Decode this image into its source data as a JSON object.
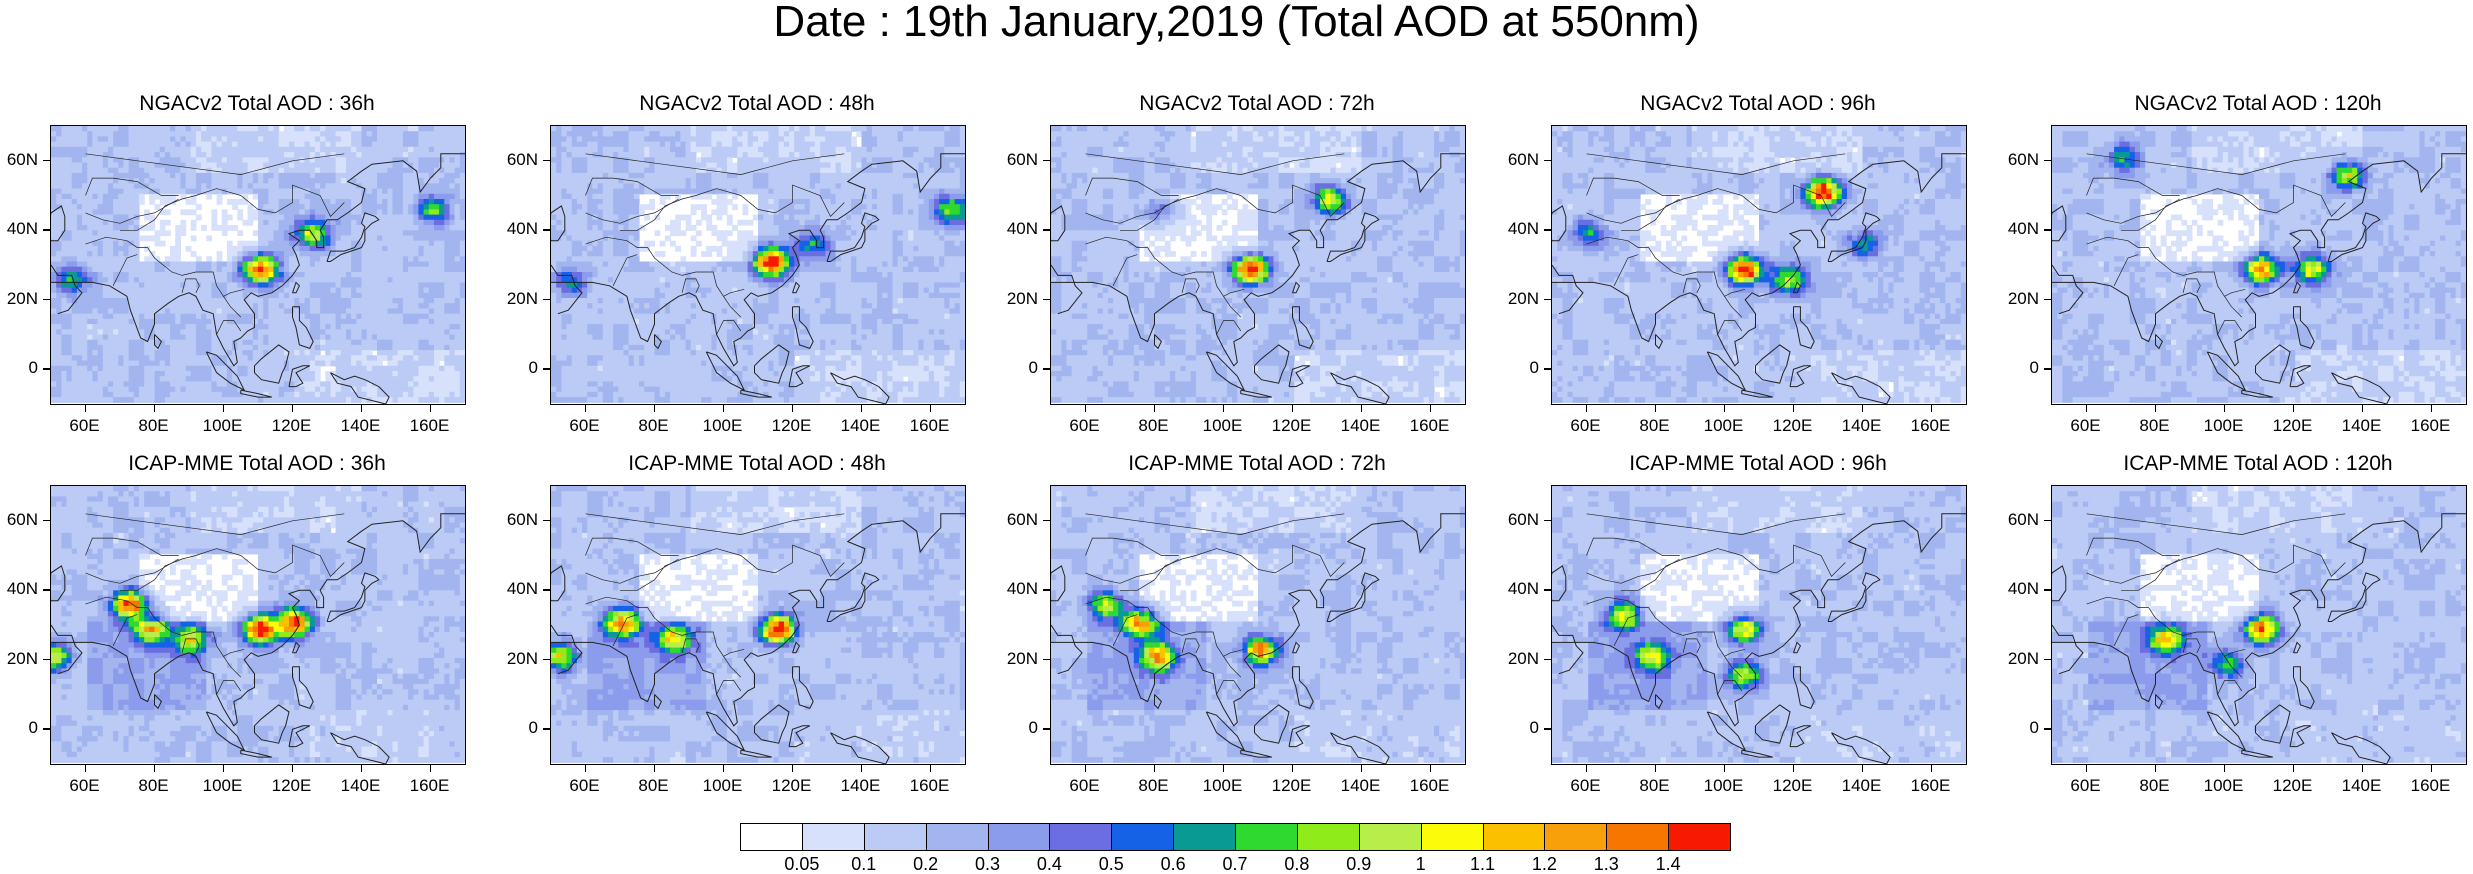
{
  "title": "Date : 19th January,2019 (Total AOD at 550nm)",
  "lat_labels": [
    "60N",
    "40N",
    "20N",
    "0"
  ],
  "lon_labels": [
    "60E",
    "80E",
    "100E",
    "120E",
    "140E",
    "160E"
  ],
  "panels": [
    {
      "title": "NGACv2 Total AOD : 36h",
      "hotspots": [
        {
          "lon": 110,
          "lat": 28,
          "value": 1.3
        },
        {
          "lon": 125,
          "lat": 38,
          "value": 0.8
        },
        {
          "lon": 160,
          "lat": 45,
          "value": 0.6
        },
        {
          "lon": 55,
          "lat": 25,
          "value": 0.5
        }
      ]
    },
    {
      "title": "NGACv2 Total AOD : 48h",
      "hotspots": [
        {
          "lon": 113,
          "lat": 30,
          "value": 1.3
        },
        {
          "lon": 125,
          "lat": 35,
          "value": 0.5
        },
        {
          "lon": 165,
          "lat": 45,
          "value": 0.7
        },
        {
          "lon": 55,
          "lat": 25,
          "value": 0.4
        }
      ]
    },
    {
      "title": "NGACv2 Total AOD : 72h",
      "hotspots": [
        {
          "lon": 107,
          "lat": 28,
          "value": 1.4
        },
        {
          "lon": 130,
          "lat": 48,
          "value": 0.8
        },
        {
          "lon": 80,
          "lat": 45,
          "value": 0.4
        }
      ]
    },
    {
      "title": "NGACv2 Total AOD : 96h",
      "hotspots": [
        {
          "lon": 105,
          "lat": 28,
          "value": 1.4
        },
        {
          "lon": 128,
          "lat": 50,
          "value": 1.4
        },
        {
          "lon": 118,
          "lat": 25,
          "value": 0.8
        },
        {
          "lon": 60,
          "lat": 38,
          "value": 0.5
        },
        {
          "lon": 140,
          "lat": 35,
          "value": 0.5
        }
      ]
    },
    {
      "title": "NGACv2 Total AOD : 120h",
      "hotspots": [
        {
          "lon": 110,
          "lat": 28,
          "value": 1.1
        },
        {
          "lon": 125,
          "lat": 28,
          "value": 0.9
        },
        {
          "lon": 135,
          "lat": 55,
          "value": 0.8
        },
        {
          "lon": 70,
          "lat": 60,
          "value": 0.5
        }
      ]
    },
    {
      "title": "ICAP-MME Total AOD : 36h",
      "hotspots": [
        {
          "lon": 110,
          "lat": 28,
          "value": 1.4
        },
        {
          "lon": 120,
          "lat": 30,
          "value": 1.3
        },
        {
          "lon": 72,
          "lat": 35,
          "value": 1.3
        },
        {
          "lon": 78,
          "lat": 28,
          "value": 0.9
        },
        {
          "lon": 90,
          "lat": 25,
          "value": 0.8
        },
        {
          "lon": 50,
          "lat": 20,
          "value": 0.8
        }
      ]
    },
    {
      "title": "ICAP-MME Total AOD : 48h",
      "hotspots": [
        {
          "lon": 115,
          "lat": 28,
          "value": 1.4
        },
        {
          "lon": 70,
          "lat": 30,
          "value": 1.1
        },
        {
          "lon": 85,
          "lat": 25,
          "value": 0.9
        },
        {
          "lon": 52,
          "lat": 20,
          "value": 0.8
        }
      ]
    },
    {
      "title": "ICAP-MME Total AOD : 72h",
      "hotspots": [
        {
          "lon": 75,
          "lat": 30,
          "value": 1.1
        },
        {
          "lon": 80,
          "lat": 20,
          "value": 1.0
        },
        {
          "lon": 110,
          "lat": 22,
          "value": 1.1
        },
        {
          "lon": 65,
          "lat": 35,
          "value": 0.8
        }
      ]
    },
    {
      "title": "ICAP-MME Total AOD : 96h",
      "hotspots": [
        {
          "lon": 70,
          "lat": 32,
          "value": 0.9
        },
        {
          "lon": 78,
          "lat": 20,
          "value": 0.8
        },
        {
          "lon": 105,
          "lat": 28,
          "value": 0.9
        },
        {
          "lon": 105,
          "lat": 15,
          "value": 0.8
        }
      ]
    },
    {
      "title": "ICAP-MME Total AOD : 120h",
      "hotspots": [
        {
          "lon": 82,
          "lat": 25,
          "value": 0.9
        },
        {
          "lon": 110,
          "lat": 28,
          "value": 1.2
        },
        {
          "lon": 100,
          "lat": 18,
          "value": 0.6
        }
      ]
    }
  ],
  "colorbar": {
    "colors": [
      "#ffffff",
      "#d7e1fb",
      "#bccbf5",
      "#a2b5ef",
      "#8c9cec",
      "#6a6ee0",
      "#1562e6",
      "#0a9a94",
      "#2fd92f",
      "#8fec1a",
      "#b8ee4a",
      "#fbfb0a",
      "#fbc100",
      "#f7a00a",
      "#f67600",
      "#f51a00"
    ],
    "labels": [
      "0.05",
      "0.1",
      "0.2",
      "0.3",
      "0.4",
      "0.5",
      "0.6",
      "0.7",
      "0.8",
      "0.9",
      "1",
      "1.1",
      "1.2",
      "1.3",
      "1.4"
    ]
  }
}
